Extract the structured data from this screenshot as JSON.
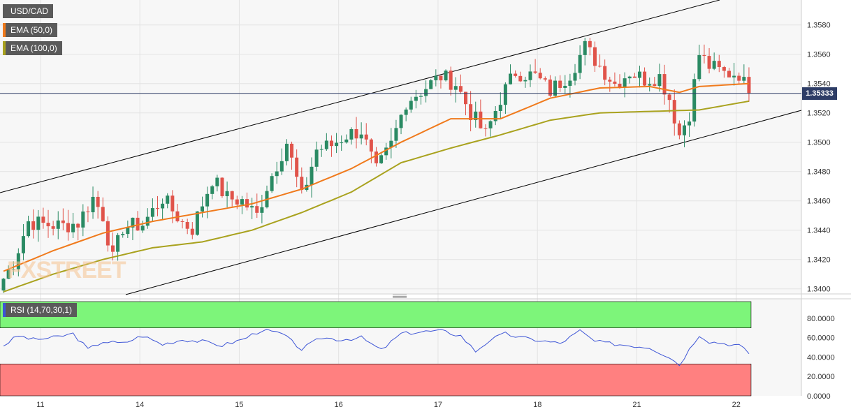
{
  "legend": {
    "symbol": "USD/CAD",
    "ema50": "EMA (50,0)",
    "ema100": "EMA (100,0)",
    "rsi": "RSI (14,70,30,1)"
  },
  "current_price_label": "1.35333",
  "watermark": "FXSTREET",
  "colors": {
    "up": "#2a8a63",
    "down": "#e0534a",
    "ema50": "#f07a1c",
    "ema100": "#a9a21e",
    "rsi_line": "#3d55d6",
    "overbought_zone": "#7df57a",
    "oversold_zone": "#ff8080",
    "channel": "#000000",
    "price_line": "#2e3d66"
  },
  "chart_data": [
    {
      "type": "candlestick",
      "symbol": "USD/CAD",
      "x_ticks": [
        "11",
        "14",
        "15",
        "16",
        "17",
        "18",
        "21",
        "22"
      ],
      "y_ticks": [
        "1.3400",
        "1.3420",
        "1.3440",
        "1.3460",
        "1.3480",
        "1.3500",
        "1.3520",
        "1.3540",
        "1.3560",
        "1.3580"
      ],
      "ylim": [
        1.3397,
        1.3597
      ],
      "n_bars": 151,
      "last_price": 1.35333,
      "close_anchors": [
        [
          0,
          1.3407
        ],
        [
          2,
          1.3418
        ],
        [
          5,
          1.3446
        ],
        [
          8,
          1.3444
        ],
        [
          12,
          1.3443
        ],
        [
          15,
          1.3445
        ],
        [
          18,
          1.3462
        ],
        [
          20,
          1.345
        ],
        [
          22,
          1.342
        ],
        [
          24,
          1.3442
        ],
        [
          28,
          1.3444
        ],
        [
          32,
          1.3462
        ],
        [
          36,
          1.3445
        ],
        [
          38,
          1.3441
        ],
        [
          42,
          1.3475
        ],
        [
          45,
          1.3462
        ],
        [
          48,
          1.346
        ],
        [
          51,
          1.345
        ],
        [
          53,
          1.347
        ],
        [
          57,
          1.35
        ],
        [
          60,
          1.3462
        ],
        [
          63,
          1.3495
        ],
        [
          66,
          1.3498
        ],
        [
          69,
          1.3505
        ],
        [
          72,
          1.3508
        ],
        [
          75,
          1.348
        ],
        [
          78,
          1.3498
        ],
        [
          81,
          1.3528
        ],
        [
          84,
          1.3535
        ],
        [
          88,
          1.3545
        ],
        [
          91,
          1.354
        ],
        [
          94,
          1.352
        ],
        [
          97,
          1.3505
        ],
        [
          100,
          1.353
        ],
        [
          103,
          1.3548
        ],
        [
          107,
          1.3545
        ],
        [
          110,
          1.3535
        ],
        [
          114,
          1.3547
        ],
        [
          117,
          1.3565
        ],
        [
          120,
          1.3552
        ],
        [
          123,
          1.354
        ],
        [
          126,
          1.3548
        ],
        [
          129,
          1.3543
        ],
        [
          132,
          1.3545
        ],
        [
          134,
          1.353
        ],
        [
          136,
          1.3505
        ],
        [
          138,
          1.352
        ],
        [
          140,
          1.356
        ],
        [
          142,
          1.3552
        ],
        [
          145,
          1.3547
        ],
        [
          148,
          1.3547
        ],
        [
          150,
          1.3533
        ]
      ],
      "ema50_anchors": [
        [
          0,
          1.3412
        ],
        [
          10,
          1.3426
        ],
        [
          20,
          1.3438
        ],
        [
          30,
          1.3446
        ],
        [
          40,
          1.3452
        ],
        [
          50,
          1.3458
        ],
        [
          60,
          1.3468
        ],
        [
          70,
          1.3482
        ],
        [
          80,
          1.35
        ],
        [
          90,
          1.3516
        ],
        [
          100,
          1.3516
        ],
        [
          110,
          1.353
        ],
        [
          120,
          1.3537
        ],
        [
          130,
          1.3538
        ],
        [
          136,
          1.3534
        ],
        [
          140,
          1.3538
        ],
        [
          150,
          1.354
        ]
      ],
      "ema100_anchors": [
        [
          0,
          1.3398
        ],
        [
          10,
          1.341
        ],
        [
          20,
          1.342
        ],
        [
          30,
          1.3428
        ],
        [
          40,
          1.3432
        ],
        [
          50,
          1.344
        ],
        [
          60,
          1.3452
        ],
        [
          70,
          1.3466
        ],
        [
          80,
          1.3486
        ],
        [
          90,
          1.3496
        ],
        [
          100,
          1.3505
        ],
        [
          110,
          1.3515
        ],
        [
          120,
          1.352
        ],
        [
          130,
          1.3521
        ],
        [
          140,
          1.3522
        ],
        [
          150,
          1.3528
        ]
      ]
    },
    {
      "type": "line",
      "name": "RSI (14,70,30,1)",
      "y_ticks": [
        "0.0000",
        "20.0000",
        "40.0000",
        "60.0000",
        "80.0000"
      ],
      "ylim": [
        0,
        100
      ],
      "overbought": 70,
      "oversold": 30,
      "rsi_anchors": [
        [
          0,
          52
        ],
        [
          3,
          62
        ],
        [
          6,
          58
        ],
        [
          10,
          60
        ],
        [
          14,
          64
        ],
        [
          17,
          48
        ],
        [
          20,
          56
        ],
        [
          24,
          54
        ],
        [
          28,
          62
        ],
        [
          32,
          53
        ],
        [
          36,
          58
        ],
        [
          40,
          56
        ],
        [
          44,
          52
        ],
        [
          48,
          58
        ],
        [
          52,
          68
        ],
        [
          56,
          64
        ],
        [
          60,
          48
        ],
        [
          64,
          60
        ],
        [
          68,
          58
        ],
        [
          72,
          60
        ],
        [
          76,
          47
        ],
        [
          80,
          64
        ],
        [
          84,
          66
        ],
        [
          88,
          67
        ],
        [
          92,
          62
        ],
        [
          95,
          46
        ],
        [
          98,
          58
        ],
        [
          101,
          64
        ],
        [
          104,
          60
        ],
        [
          108,
          57
        ],
        [
          112,
          54
        ],
        [
          116,
          67
        ],
        [
          119,
          56
        ],
        [
          122,
          54
        ],
        [
          126,
          52
        ],
        [
          130,
          50
        ],
        [
          134,
          40
        ],
        [
          136,
          32
        ],
        [
          138,
          48
        ],
        [
          140,
          63
        ],
        [
          142,
          56
        ],
        [
          145,
          54
        ],
        [
          148,
          52
        ],
        [
          150,
          44
        ]
      ]
    }
  ]
}
